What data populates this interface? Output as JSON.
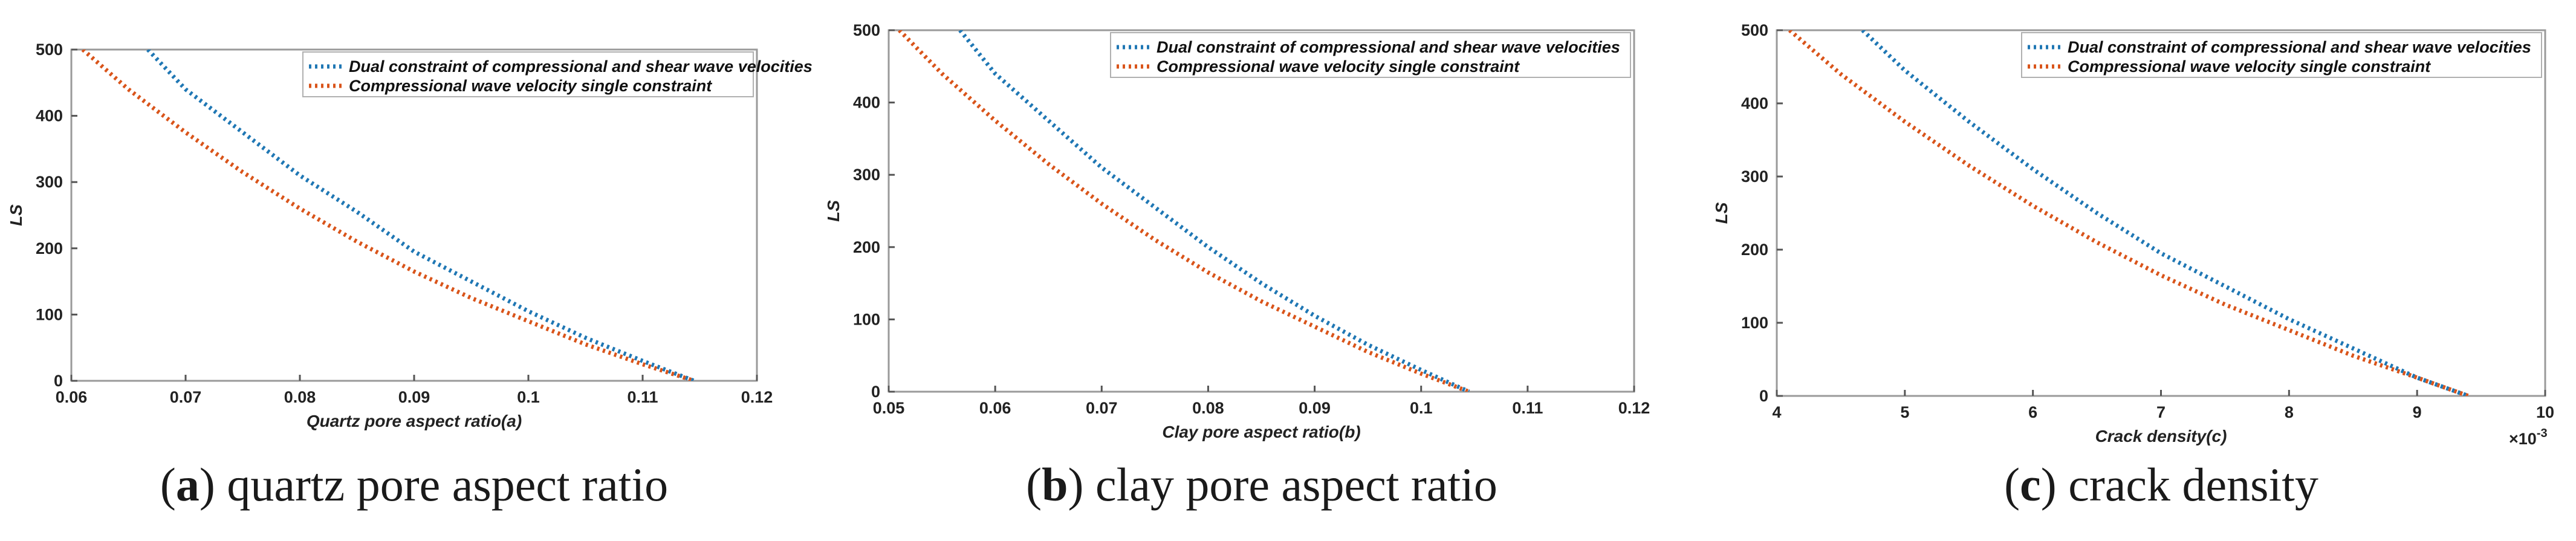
{
  "colors": {
    "dual": "#1f77b4",
    "single": "#d9541a"
  },
  "chart_data": [
    {
      "type": "line",
      "panel": "a",
      "caption_letter": "a",
      "caption_text": " quartz pore aspect ratio",
      "title": "",
      "xlabel": "Quartz pore aspect ratio(a)",
      "ylabel": "LS",
      "xlim": [
        0.06,
        0.12
      ],
      "ylim": [
        0,
        500
      ],
      "xticks": [
        0.06,
        0.07,
        0.08,
        0.09,
        0.1,
        0.11,
        0.12
      ],
      "xtick_labels": [
        "0.06",
        "0.07",
        "0.08",
        "0.09",
        "0.1",
        "0.11",
        "0.12"
      ],
      "yticks": [
        0,
        100,
        200,
        300,
        400,
        500
      ],
      "ytick_labels": [
        "0",
        "100",
        "200",
        "300",
        "400",
        "500"
      ],
      "exponent_label": "",
      "legend_position": "top-right",
      "series": [
        {
          "name": "Dual constraint of compressional and shear wave velocities",
          "color_key": "dual",
          "x": [
            0.0667,
            0.07,
            0.075,
            0.08,
            0.085,
            0.09,
            0.095,
            0.1,
            0.105,
            0.11,
            0.1145
          ],
          "y": [
            500,
            440,
            375,
            310,
            255,
            195,
            150,
            105,
            65,
            30,
            0
          ]
        },
        {
          "name": "Compressional wave velocity single constraint",
          "color_key": "single",
          "x": [
            0.061,
            0.065,
            0.07,
            0.075,
            0.08,
            0.085,
            0.09,
            0.095,
            0.1,
            0.105,
            0.11,
            0.1145
          ],
          "y": [
            500,
            440,
            375,
            315,
            260,
            210,
            165,
            125,
            90,
            55,
            25,
            0
          ]
        }
      ]
    },
    {
      "type": "line",
      "panel": "b",
      "caption_letter": "b",
      "caption_text": " clay pore aspect ratio",
      "title": "",
      "xlabel": "Clay pore aspect ratio(b)",
      "ylabel": "LS",
      "xlim": [
        0.05,
        0.12
      ],
      "ylim": [
        0,
        500
      ],
      "xticks": [
        0.05,
        0.06,
        0.07,
        0.08,
        0.09,
        0.1,
        0.11,
        0.12
      ],
      "xtick_labels": [
        "0.05",
        "0.06",
        "0.07",
        "0.08",
        "0.09",
        "0.1",
        "0.11",
        "0.12"
      ],
      "yticks": [
        0,
        100,
        200,
        300,
        400,
        500
      ],
      "ytick_labels": [
        "0",
        "100",
        "200",
        "300",
        "400",
        "500"
      ],
      "exponent_label": "",
      "legend_position": "top-right",
      "series": [
        {
          "name": "Dual constraint of compressional and shear wave velocities",
          "color_key": "dual",
          "x": [
            0.0567,
            0.06,
            0.065,
            0.07,
            0.075,
            0.08,
            0.085,
            0.09,
            0.095,
            0.1,
            0.1045
          ],
          "y": [
            500,
            440,
            375,
            310,
            255,
            200,
            150,
            105,
            65,
            30,
            0
          ]
        },
        {
          "name": "Compressional wave velocity single constraint",
          "color_key": "single",
          "x": [
            0.051,
            0.055,
            0.06,
            0.065,
            0.07,
            0.075,
            0.08,
            0.085,
            0.09,
            0.095,
            0.1,
            0.1045
          ],
          "y": [
            500,
            440,
            375,
            315,
            260,
            210,
            165,
            125,
            90,
            55,
            25,
            0
          ]
        }
      ]
    },
    {
      "type": "line",
      "panel": "c",
      "caption_letter": "c",
      "caption_text": " crack density",
      "title": "",
      "xlabel": "Crack density(c)",
      "ylabel": "LS",
      "xlim": [
        4,
        10
      ],
      "ylim": [
        0,
        500
      ],
      "xticks": [
        4,
        5,
        6,
        7,
        8,
        9,
        10
      ],
      "xtick_labels": [
        "4",
        "5",
        "6",
        "7",
        "8",
        "9",
        "10"
      ],
      "yticks": [
        0,
        100,
        200,
        300,
        400,
        500
      ],
      "ytick_labels": [
        "0",
        "100",
        "200",
        "300",
        "400",
        "500"
      ],
      "exponent_label": "×10",
      "exponent_power": "-3",
      "legend_position": "top-right",
      "series": [
        {
          "name": "Dual constraint of compressional and shear wave velocities",
          "color_key": "dual",
          "x": [
            4.67,
            5.0,
            5.5,
            6.0,
            6.5,
            7.0,
            7.5,
            8.0,
            8.5,
            9.0,
            9.4
          ],
          "y": [
            500,
            445,
            375,
            310,
            250,
            195,
            150,
            105,
            65,
            25,
            0
          ]
        },
        {
          "name": "Compressional wave velocity single constraint",
          "color_key": "single",
          "x": [
            4.1,
            4.5,
            5.0,
            5.5,
            6.0,
            6.5,
            7.0,
            7.5,
            8.0,
            8.5,
            9.0,
            9.4
          ],
          "y": [
            500,
            440,
            375,
            315,
            260,
            210,
            165,
            125,
            90,
            55,
            25,
            0
          ]
        }
      ]
    }
  ]
}
